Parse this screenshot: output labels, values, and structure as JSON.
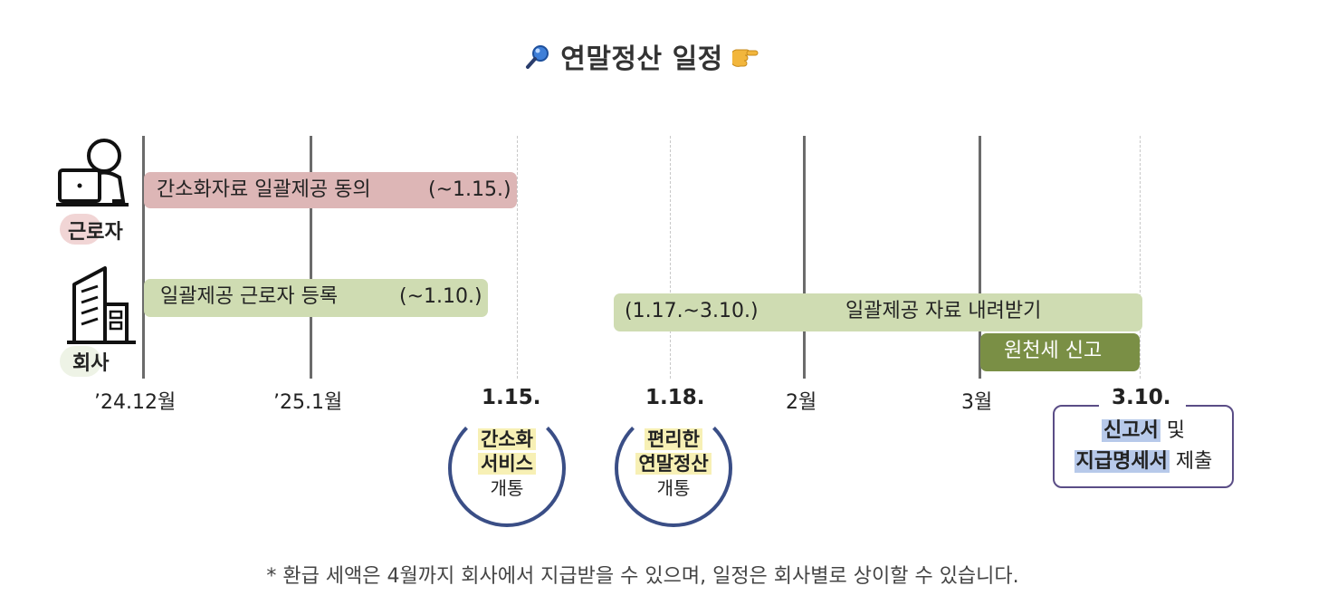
{
  "title": "연말정산 일정",
  "icons": {
    "left": "magnifier-icon",
    "right": "pointing-hand-icon"
  },
  "roles": {
    "worker": "근로자",
    "company": "회사"
  },
  "bars": {
    "consent": {
      "label": "간소화자료 일괄제공 동의",
      "period": "(~1.15.)"
    },
    "register": {
      "label": "일괄제공 근로자 등록",
      "period": "(~1.10.)"
    },
    "download": {
      "period": "(1.17.~3.10.)",
      "label": "일괄제공 자료 내려받기"
    },
    "withholding": {
      "label": "원천세 신고"
    }
  },
  "ticks": {
    "dec": "’24.12월",
    "jan": "’25.1월",
    "d115": "1.15.",
    "d118": "1.18.",
    "feb": "2월",
    "mar": "3월",
    "d310": "3.10."
  },
  "events": {
    "simple": {
      "line1": "간소화",
      "line2": "서비스",
      "line3": "개통"
    },
    "easy": {
      "line1": "편리한",
      "line2": "연말정산",
      "line3": "개통"
    },
    "submit": {
      "hl1": "신고서",
      "t1": " 및",
      "hl2": "지급명세서",
      "t2": " 제출"
    }
  },
  "colors": {
    "pink": "#ddb6b6",
    "green": "#cfdcb2",
    "dark_green": "#7a8f45",
    "navy": "#3a4e86",
    "purple": "#5a4d86"
  },
  "note": "* 환급 세액은 4월까지 회사에서 지급받을 수 있으며, 일정은 회사별로 상이할 수 있습니다."
}
